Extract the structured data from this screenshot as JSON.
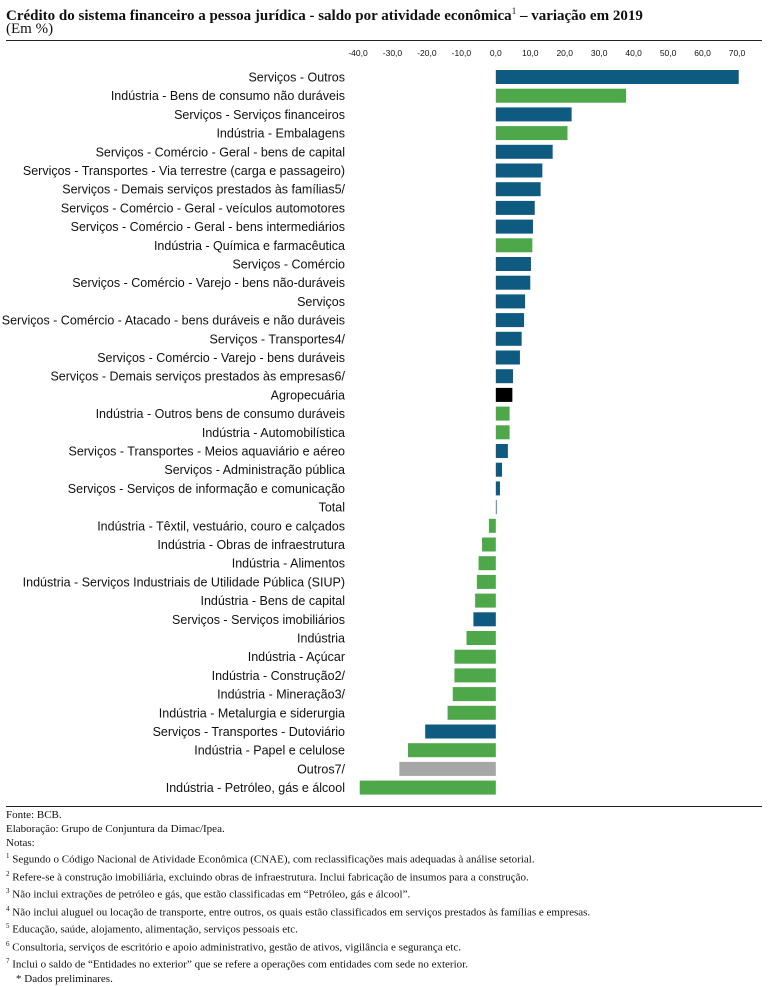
{
  "header": {
    "title": "Crédito do sistema financeiro a pessoa jurídica - saldo por atividade econômica",
    "title_sup": "1",
    "title_suffix": " – variação em 2019",
    "subtitle": "(Em %)"
  },
  "colors": {
    "servicos": "#0e5a80",
    "industria": "#4ea84a",
    "agropecuaria": "#000000",
    "outros": "#a6a6a6",
    "total": "#4a7fb5"
  },
  "chart_data": {
    "type": "bar",
    "orientation": "horizontal",
    "xlim": [
      -40,
      70
    ],
    "ticks": [
      "-40,0",
      "-30,0",
      "-20,0",
      "-10,0",
      "0,0",
      "10,0",
      "20,0",
      "30,0",
      "40,0",
      "50,0",
      "60,0",
      "70,0"
    ],
    "tick_values": [
      -40,
      -30,
      -20,
      -10,
      0,
      10,
      20,
      30,
      40,
      50,
      60,
      70
    ],
    "categories": [
      "Serviços -  Outros",
      "Indústria - Bens de consumo não duráveis",
      "Serviços - Serviços financeiros",
      "Indústria - Embalagens",
      "Serviços - Comércio - Geral - bens de capital",
      "Serviços - Transportes - Via terrestre (carga e passageiro)",
      "Serviços -  Demais serviços prestados às famílias5/",
      "Serviços - Comércio - Geral - veículos automotores",
      "Serviços - Comércio - Geral - bens intermediários",
      "Indústria - Química e farmacêutica",
      "Serviços - Comércio",
      "Serviços - Comércio - Varejo - bens não-duráveis",
      "Serviços",
      "Serviços - Comércio - Atacado - bens duráveis e não duráveis",
      "Serviços - Transportes4/",
      "Serviços - Comércio - Varejo - bens duráveis",
      "Serviços - Demais serviços prestados às empresas6/",
      "Agropecuária",
      "Indústria - Outros bens de consumo duráveis",
      "Indústria - Automobilística",
      "Serviços - Transportes - Meios aquaviário e aéreo",
      "Serviços - Administração pública",
      "Serviços -  Serviços de informação e comunicação",
      "Total",
      "Indústria - Têxtil, vestuário, couro e calçados",
      "Indústria - Obras de infraestrutura",
      "Indústria - Alimentos",
      "Indústria - Serviços Industriais de Utilidade Pública (SIUP)",
      "Indústria - Bens de capital",
      "Serviços - Serviços imobiliários",
      "Indústria",
      "Indústria - Açúcar",
      "Indústria - Construção2/",
      "Indústria - Mineração3/",
      "Indústria - Metalurgia e siderurgia",
      "Serviços - Transportes -  Dutoviário",
      "Indústria - Papel e celulose",
      "Outros7/",
      "Indústria - Petróleo, gás e álcool"
    ],
    "values": [
      70.5,
      37.8,
      22.0,
      20.8,
      16.5,
      13.5,
      13.0,
      11.3,
      10.8,
      10.6,
      10.2,
      10.0,
      8.5,
      8.2,
      7.5,
      7.0,
      5.0,
      4.8,
      4.0,
      4.0,
      3.5,
      1.8,
      1.2,
      0.2,
      -2.0,
      -4.0,
      -5.0,
      -5.5,
      -6.0,
      -6.5,
      -8.5,
      -12.0,
      -12.0,
      -12.5,
      -14.0,
      -20.5,
      -25.5,
      -28.0,
      -39.5
    ],
    "groups": [
      "servicos",
      "industria",
      "servicos",
      "industria",
      "servicos",
      "servicos",
      "servicos",
      "servicos",
      "servicos",
      "industria",
      "servicos",
      "servicos",
      "servicos",
      "servicos",
      "servicos",
      "servicos",
      "servicos",
      "agropecuaria",
      "industria",
      "industria",
      "servicos",
      "servicos",
      "servicos",
      "total",
      "industria",
      "industria",
      "industria",
      "industria",
      "industria",
      "servicos",
      "industria",
      "industria",
      "industria",
      "industria",
      "industria",
      "servicos",
      "industria",
      "outros",
      "industria"
    ]
  },
  "notes": {
    "source": "Fonte: BCB.",
    "elaboration": "Elaboração: Grupo de Conjuntura da Dimac/Ipea.",
    "notes_title": "Notas:",
    "items": [
      {
        "mark": "1",
        "text": " Segundo o Código Nacional de Atividade Econômica (CNAE), com reclassificações mais adequadas à análise setorial."
      },
      {
        "mark": "2",
        "text": " Refere-se à construção imobiliária, excluindo obras de infraestrutura. Inclui fabricação de insumos para a construção."
      },
      {
        "mark": "3",
        "text": " Não inclui extrações de petróleo e gás, que estão classificadas em “Petróleo, gás e álcool”."
      },
      {
        "mark": "4",
        "text": " Não inclui aluguel ou locação de transporte, entre outros, os quais estão classificados em serviços prestados às famílias e empresas."
      },
      {
        "mark": "5",
        "text": " Educação, saúde, alojamento, alimentação, serviços pessoais etc."
      },
      {
        "mark": "6",
        "text": " Consultoria, serviços de escritório e apoio administrativo, gestão de ativos, vigilância e segurança etc."
      },
      {
        "mark": "7",
        "text": " Inclui o saldo de “Entidades no exterior” que se refere a operações com entidades com sede no exterior."
      }
    ],
    "preliminary": "* Dados preliminares."
  }
}
